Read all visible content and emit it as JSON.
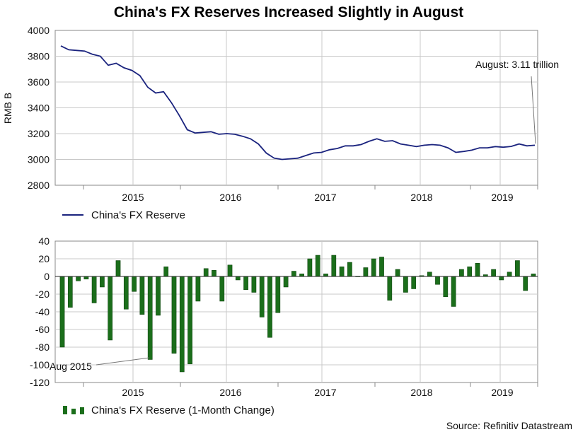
{
  "title": "China's FX Reserves Increased Slightly in August",
  "source": "Source: Refinitiv Datastream",
  "colors": {
    "line": "#1a237e",
    "bar": "#1b6e1b",
    "bar_edge": "#0b3d0b",
    "grid": "#c8c8c8",
    "axis": "#888888"
  },
  "chart_data": [
    {
      "type": "line",
      "title": "China's FX Reserves Increased Slightly in August",
      "ylabel": "RMB B",
      "ylim": [
        2800,
        4000
      ],
      "yticks": [
        "2800",
        "3000",
        "3200",
        "3400",
        "3600",
        "3800",
        "4000"
      ],
      "xticks": [
        "2015",
        "2016",
        "2017",
        "2018",
        "2019"
      ],
      "legend": "China's FX Reserve",
      "annotation": "August: 3.11 trillion",
      "series": [
        {
          "name": "China's FX Reserve",
          "values": [
            3880,
            3850,
            3845,
            3840,
            3815,
            3800,
            3730,
            3745,
            3710,
            3690,
            3650,
            3560,
            3515,
            3525,
            3440,
            3340,
            3230,
            3205,
            3210,
            3215,
            3195,
            3200,
            3195,
            3180,
            3160,
            3120,
            3050,
            3010,
            3000,
            3005,
            3010,
            3030,
            3050,
            3055,
            3075,
            3085,
            3105,
            3105,
            3115,
            3140,
            3160,
            3140,
            3145,
            3120,
            3110,
            3100,
            3110,
            3115,
            3110,
            3090,
            3055,
            3062,
            3072,
            3090,
            3090,
            3100,
            3095,
            3101,
            3120,
            3105,
            3110
          ]
        }
      ]
    },
    {
      "type": "bar",
      "ylim": [
        -120,
        40
      ],
      "yticks": [
        "-120",
        "-100",
        "-80",
        "-60",
        "-40",
        "-20",
        "0",
        "20",
        "40"
      ],
      "xticks": [
        "2015",
        "2016",
        "2017",
        "2018",
        "2019"
      ],
      "legend": "China's FX Reserve (1-Month Change)",
      "annotation": "Aug 2015",
      "series": [
        {
          "name": "China's FX Reserve (1-Month Change)",
          "values": [
            -80,
            -35,
            -5,
            -3,
            -30,
            -12,
            -72,
            18,
            -37,
            -17,
            -43,
            -94,
            -44,
            11,
            -87,
            -108,
            -99,
            -28,
            9,
            7,
            -28,
            13,
            -4,
            -15,
            -18,
            -46,
            -69,
            -41,
            -12,
            6,
            3,
            20,
            24,
            3,
            24,
            11,
            16,
            0,
            10,
            20,
            22,
            -27,
            8,
            -18,
            -14,
            1,
            5,
            -9,
            -23,
            -34,
            8,
            11,
            15,
            2,
            8,
            -4,
            5,
            18,
            -16,
            3
          ]
        }
      ]
    }
  ]
}
